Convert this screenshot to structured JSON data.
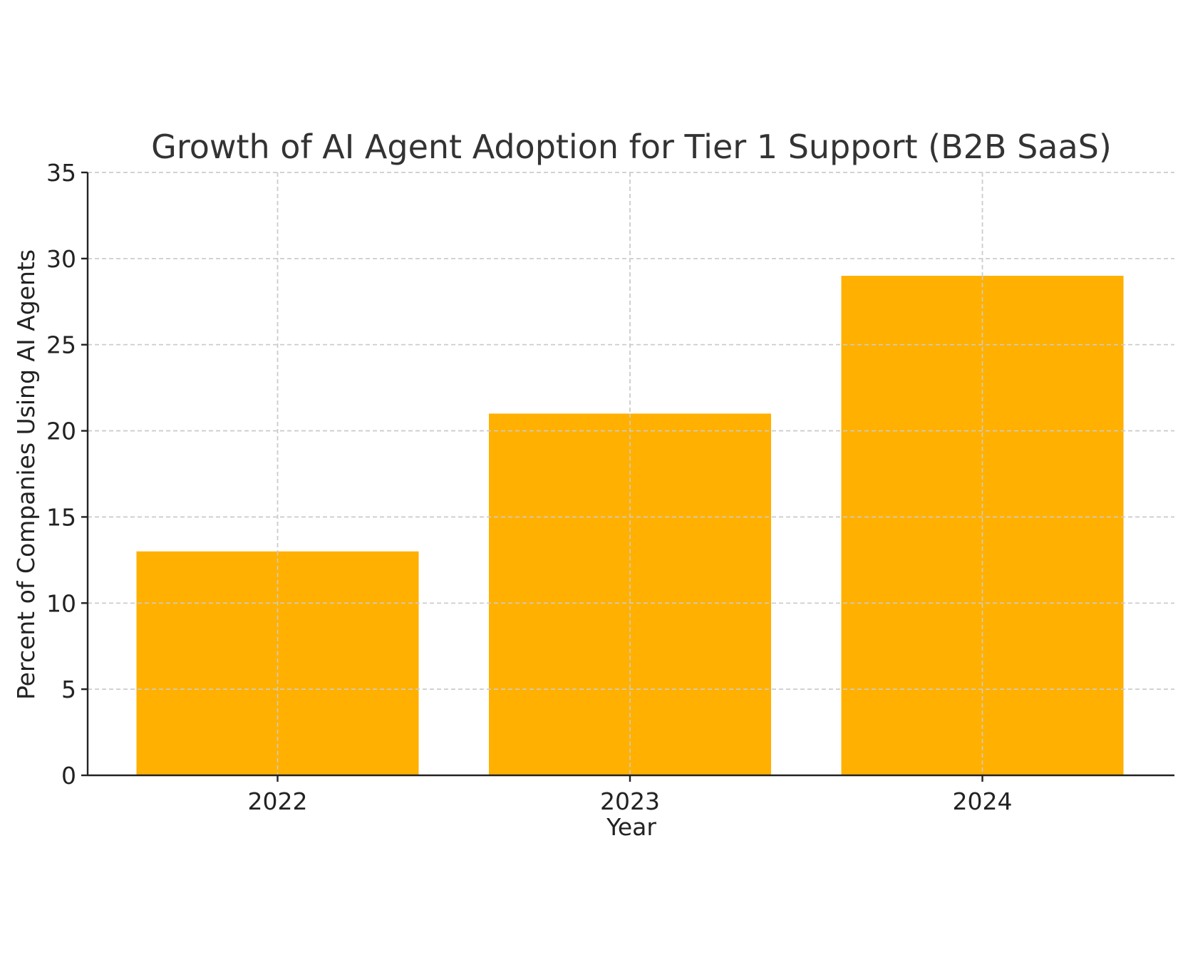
{
  "chart_data": {
    "type": "bar",
    "title": "Growth of AI Agent Adoption for Tier 1 Support (B2B SaaS)",
    "xlabel": "Year",
    "ylabel": "Percent of Companies Using AI Agents",
    "categories": [
      "2022",
      "2023",
      "2024"
    ],
    "values": [
      13,
      21,
      29
    ],
    "ylim": [
      0,
      35
    ],
    "yticks": [
      0,
      5,
      10,
      15,
      20,
      25,
      30,
      35
    ],
    "grid": true,
    "bar_color": "#FFB000"
  }
}
